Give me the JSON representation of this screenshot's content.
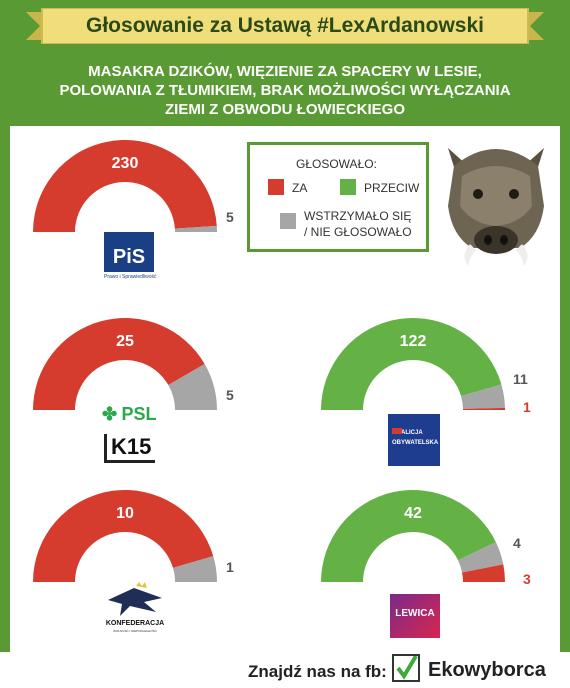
{
  "header": {
    "title": "Głosowanie za Ustawą #LexArdanowski",
    "subtitle_lines": [
      "MASAKRA DZIKÓW, WIĘZIENIE ZA SPACERY W LESIE,",
      "POLOWANIA Z TŁUMIKIEM, BRAK MOŻLIWOŚCI WYŁĄCZANIA",
      "ZIEMI Z OBWODU ŁOWIECKIEGO"
    ]
  },
  "legend": {
    "title": "GŁOSOWAŁO:",
    "items": [
      {
        "label": "ZA",
        "color": "#d63c2e"
      },
      {
        "label": "PRZECIW",
        "color": "#64b246"
      },
      {
        "label_lines": [
          "WSTRZYMAŁO SIĘ",
          "/ NIE GŁOSOWAŁO"
        ],
        "color": "#a6a6a6"
      }
    ]
  },
  "chart_data": [
    {
      "type": "pie",
      "party": "PiS",
      "series": [
        {
          "category": "ZA",
          "value": 230,
          "color": "#d63c2e"
        },
        {
          "category": "PRZECIW",
          "value": 0,
          "color": "#64b246"
        },
        {
          "category": "WSTRZYMAŁO SIĘ / NIE GŁOSOWAŁO",
          "value": 5,
          "color": "#a6a6a6"
        }
      ],
      "labels": {
        "main": "230",
        "abstain": "5",
        "other": ""
      }
    },
    {
      "type": "pie",
      "party": "PSL / K15",
      "series": [
        {
          "category": "ZA",
          "value": 25,
          "color": "#d63c2e"
        },
        {
          "category": "PRZECIW",
          "value": 0,
          "color": "#64b246"
        },
        {
          "category": "WSTRZYMAŁO SIĘ / NIE GŁOSOWAŁO",
          "value": 5,
          "color": "#a6a6a6"
        }
      ],
      "labels": {
        "main": "25",
        "abstain": "5",
        "other": ""
      }
    },
    {
      "type": "pie",
      "party": "Koalicja Obywatelska",
      "series": [
        {
          "category": "PRZECIW",
          "value": 122,
          "color": "#64b246"
        },
        {
          "category": "WSTRZYMAŁO SIĘ / NIE GŁOSOWAŁO",
          "value": 11,
          "color": "#a6a6a6"
        },
        {
          "category": "ZA",
          "value": 1,
          "color": "#d63c2e"
        }
      ],
      "labels": {
        "main": "122",
        "abstain": "11",
        "other": "1"
      }
    },
    {
      "type": "pie",
      "party": "Konfederacja",
      "series": [
        {
          "category": "ZA",
          "value": 10,
          "color": "#d63c2e"
        },
        {
          "category": "PRZECIW",
          "value": 0,
          "color": "#64b246"
        },
        {
          "category": "WSTRZYMAŁO SIĘ / NIE GŁOSOWAŁO",
          "value": 1,
          "color": "#a6a6a6"
        }
      ],
      "labels": {
        "main": "10",
        "abstain": "1",
        "other": ""
      }
    },
    {
      "type": "pie",
      "party": "Lewica",
      "series": [
        {
          "category": "PRZECIW",
          "value": 42,
          "color": "#64b246"
        },
        {
          "category": "WSTRZYMAŁO SIĘ / NIE GŁOSOWAŁO",
          "value": 4,
          "color": "#a6a6a6"
        },
        {
          "category": "ZA",
          "value": 3,
          "color": "#d63c2e"
        }
      ],
      "labels": {
        "main": "42",
        "abstain": "4",
        "other": "3"
      }
    }
  ],
  "logos": {
    "pis": {
      "text": "PiS",
      "sub": "Prawo i Sprawiedliwość"
    },
    "psl": {
      "text": "PSL"
    },
    "k15": {
      "text": "K15"
    },
    "ko": {
      "line1": "KOALICJA",
      "line2": "OBYWATELSKA"
    },
    "konf": {
      "text": "KONFEDERACJA",
      "sub": "WOLNOŚĆ I NIEPODLEGŁOŚĆ"
    },
    "lewica": {
      "text": "LEWICA"
    }
  },
  "footer": {
    "text": "Znajdź nas na fb:",
    "brand": "Ekowyborca"
  },
  "colors": {
    "green": "#5a9a34",
    "red": "#d63c2e",
    "lightgreen": "#64b246",
    "gray": "#a6a6a6"
  }
}
